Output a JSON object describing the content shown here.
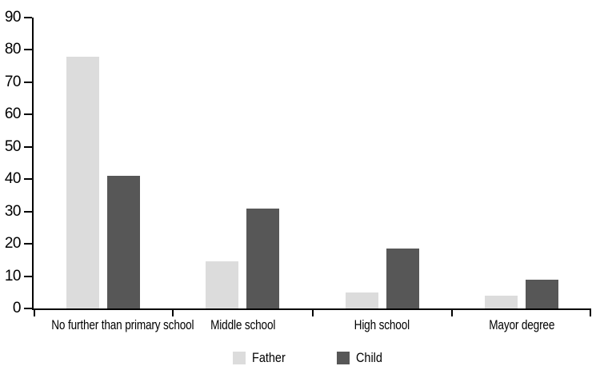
{
  "chart_data": {
    "type": "bar",
    "categories": [
      "No further than primary school",
      "Middle school",
      "High school",
      "Mayor degree"
    ],
    "series": [
      {
        "name": "Father",
        "color": "#dcdcdc",
        "values": [
          78,
          14.5,
          5,
          4
        ]
      },
      {
        "name": "Child",
        "color": "#575757",
        "values": [
          41,
          31,
          18.5,
          9
        ]
      }
    ],
    "yticks": [
      0,
      10,
      20,
      30,
      40,
      50,
      60,
      70,
      80,
      90
    ],
    "ylim": [
      0,
      90
    ],
    "xlabel": "",
    "ylabel": "",
    "grid": false,
    "legend_position": "bottom",
    "axis_color": "#000000",
    "background_color": "#ffffff"
  }
}
